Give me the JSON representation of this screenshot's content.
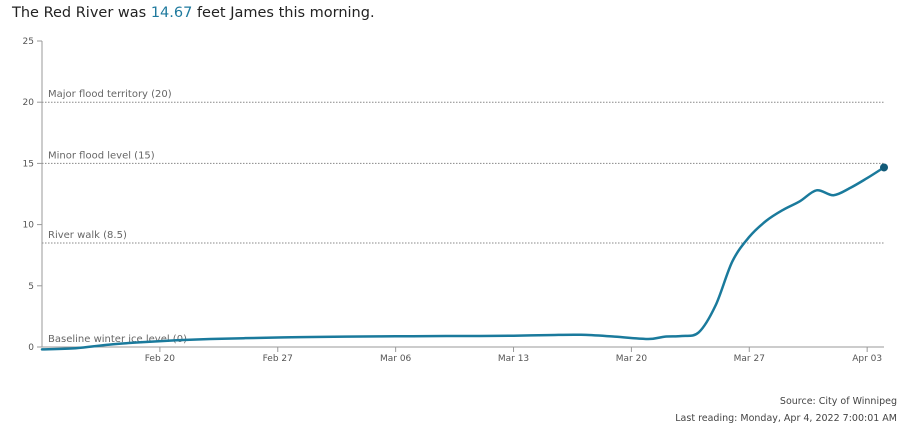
{
  "headline": {
    "prefix": "The Red River was ",
    "value": "14.67",
    "suffix": " feet James this morning."
  },
  "footer": {
    "source": "Source: City of Winnipeg",
    "last_reading": "Last reading: Monday, Apr 4, 2022 7:00:01 AM"
  },
  "colors": {
    "line": "#1a7a9c",
    "endpoint": "#125a78",
    "reference": "#888888",
    "axis": "#999999"
  },
  "chart_data": {
    "type": "line",
    "title": "",
    "xlabel": "",
    "ylabel": "",
    "ylim": [
      0,
      25
    ],
    "yticks": [
      0,
      5,
      10,
      15,
      20,
      25
    ],
    "xlim": [
      "2022-02-13",
      "2022-04-04"
    ],
    "xticks": [
      {
        "date": "2022-02-20",
        "label": "Feb 20"
      },
      {
        "date": "2022-02-27",
        "label": "Feb 27"
      },
      {
        "date": "2022-03-06",
        "label": "Mar 06"
      },
      {
        "date": "2022-03-13",
        "label": "Mar 13"
      },
      {
        "date": "2022-03-20",
        "label": "Mar 20"
      },
      {
        "date": "2022-03-27",
        "label": "Mar 27"
      },
      {
        "date": "2022-04-03",
        "label": "Apr 03"
      }
    ],
    "grid": false,
    "reference_lines": [
      {
        "y": 20,
        "label": "Major flood territory (20)"
      },
      {
        "y": 15,
        "label": "Minor flood level (15)"
      },
      {
        "y": 8.5,
        "label": "River walk (8.5)"
      },
      {
        "y": 0,
        "label": "Baseline winter ice level (0)"
      }
    ],
    "series": [
      {
        "x": [
          "2022-02-13",
          "2022-02-15",
          "2022-02-17",
          "2022-02-19",
          "2022-02-21",
          "2022-02-23",
          "2022-02-25",
          "2022-02-27",
          "2022-03-01",
          "2022-03-03",
          "2022-03-05",
          "2022-03-07",
          "2022-03-09",
          "2022-03-11",
          "2022-03-13",
          "2022-03-15",
          "2022-03-17",
          "2022-03-19",
          "2022-03-21",
          "2022-03-22",
          "2022-03-23",
          "2022-03-24",
          "2022-03-25",
          "2022-03-26",
          "2022-03-27",
          "2022-03-28",
          "2022-03-29",
          "2022-03-30",
          "2022-03-31",
          "2022-04-01",
          "2022-04-02",
          "2022-04-03",
          "2022-04-04"
        ],
        "y": [
          -0.2,
          -0.1,
          0.2,
          0.4,
          0.55,
          0.65,
          0.72,
          0.78,
          0.82,
          0.85,
          0.87,
          0.88,
          0.9,
          0.9,
          0.92,
          0.97,
          1.0,
          0.85,
          0.65,
          0.85,
          0.9,
          1.2,
          3.4,
          7.0,
          9.0,
          10.3,
          11.2,
          11.9,
          12.8,
          12.4,
          13.0,
          13.8,
          14.67
        ]
      }
    ]
  }
}
